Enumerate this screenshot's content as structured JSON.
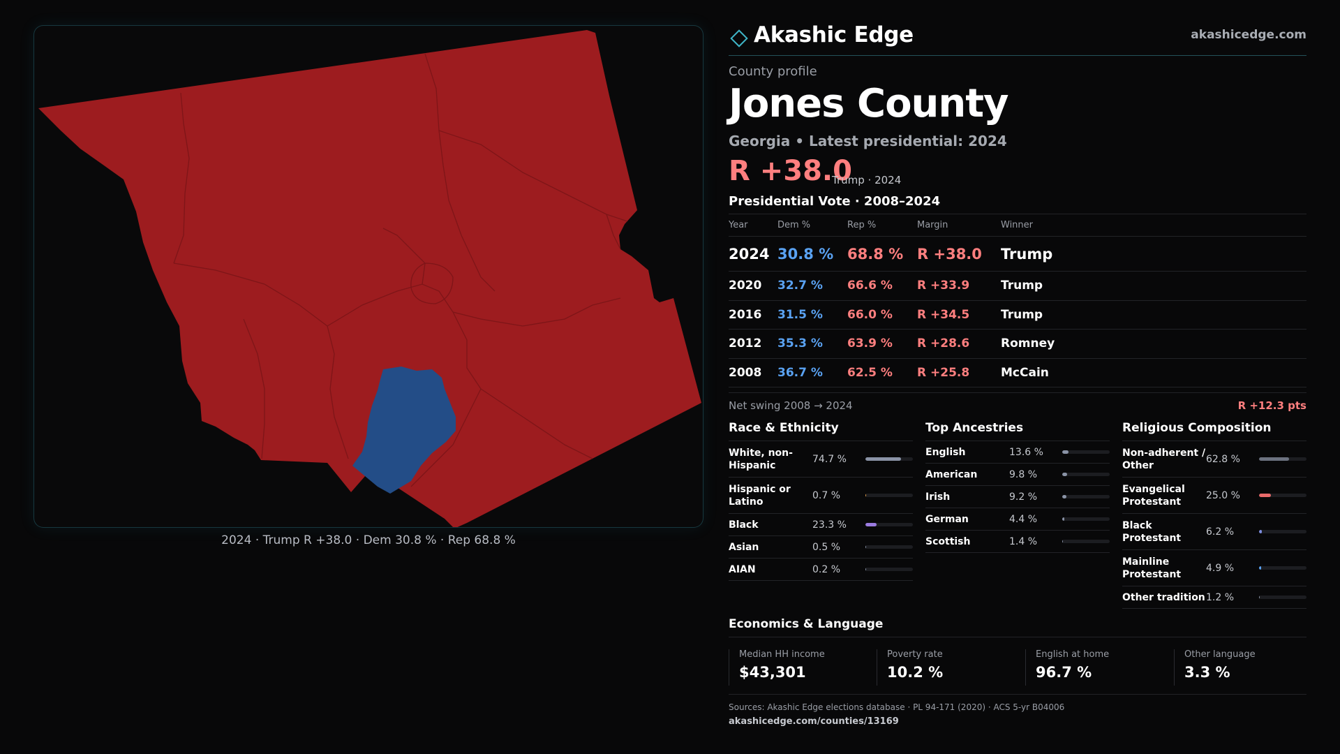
{
  "brand": {
    "name": "Akashic Edge",
    "url": "akashicedge.com"
  },
  "profile": {
    "kicker": "County profile",
    "county_name": "Jones County",
    "subtitle": "Georgia • Latest presidential: 2024",
    "margin_big": "R +38.0",
    "margin_note": "Trump · 2024"
  },
  "map": {
    "caption": "2024 · Trump R +38.0 · Dem 30.8 % · Rep 68.8 %",
    "colors": {
      "rep": "#9d1c1f",
      "dem": "#234d87",
      "borders": "#7e1518"
    }
  },
  "vote": {
    "title": "Presidential Vote · 2008–2024",
    "headers": {
      "year": "Year",
      "dem": "Dem %",
      "rep": "Rep %",
      "margin": "Margin",
      "winner": "Winner"
    },
    "rows": [
      {
        "year": "2024",
        "dem": "30.8 %",
        "rep": "68.8 %",
        "margin": "R +38.0",
        "winner": "Trump"
      },
      {
        "year": "2020",
        "dem": "32.7 %",
        "rep": "66.6 %",
        "margin": "R +33.9",
        "winner": "Trump"
      },
      {
        "year": "2016",
        "dem": "31.5 %",
        "rep": "66.0 %",
        "margin": "R +34.5",
        "winner": "Trump"
      },
      {
        "year": "2012",
        "dem": "35.3 %",
        "rep": "63.9 %",
        "margin": "R +28.6",
        "winner": "Romney"
      },
      {
        "year": "2008",
        "dem": "36.7 %",
        "rep": "62.5 %",
        "margin": "R +25.8",
        "winner": "McCain"
      }
    ],
    "swing_label": "Net swing 2008 → 2024",
    "swing_value": "R +12.3 pts"
  },
  "race": {
    "title": "Race & Ethnicity",
    "items": [
      {
        "name": "White, non-Hispanic",
        "pct": "74.7 %",
        "value": 74.7,
        "color": "#8a93a6"
      },
      {
        "name": "Hispanic or Latino",
        "pct": "0.7 %",
        "value": 0.7,
        "color": "#e8a04a"
      },
      {
        "name": "Black",
        "pct": "23.3 %",
        "value": 23.3,
        "color": "#9b7be0"
      },
      {
        "name": "Asian",
        "pct": "0.5 %",
        "value": 0.5,
        "color": "#8a93a6"
      },
      {
        "name": "AIAN",
        "pct": "0.2 %",
        "value": 0.2,
        "color": "#8a93a6"
      }
    ]
  },
  "ancestry": {
    "title": "Top Ancestries",
    "items": [
      {
        "name": "English",
        "pct": "13.6 %",
        "value": 13.6,
        "color": "#8a93a6"
      },
      {
        "name": "American",
        "pct": "9.8 %",
        "value": 9.8,
        "color": "#8a93a6"
      },
      {
        "name": "Irish",
        "pct": "9.2 %",
        "value": 9.2,
        "color": "#8a93a6"
      },
      {
        "name": "German",
        "pct": "4.4 %",
        "value": 4.4,
        "color": "#8a93a6"
      },
      {
        "name": "Scottish",
        "pct": "1.4 %",
        "value": 1.4,
        "color": "#8a93a6"
      }
    ]
  },
  "religion": {
    "title": "Religious Composition",
    "items": [
      {
        "name": "Non-adherent / Other",
        "pct": "62.8 %",
        "value": 62.8,
        "color": "#6c7280"
      },
      {
        "name": "Evangelical Protestant",
        "pct": "25.0 %",
        "value": 25.0,
        "color": "#e86a6a"
      },
      {
        "name": "Black Protestant",
        "pct": "6.2 %",
        "value": 6.2,
        "color": "#7d8ee0"
      },
      {
        "name": "Mainline Protestant",
        "pct": "4.9 %",
        "value": 4.9,
        "color": "#5aa2f2"
      },
      {
        "name": "Other tradition",
        "pct": "1.2 %",
        "value": 1.2,
        "color": "#8a93a6"
      }
    ]
  },
  "economics": {
    "title": "Economics & Language",
    "items": [
      {
        "label": "Median HH income",
        "value": "$43,301"
      },
      {
        "label": "Poverty rate",
        "value": "10.2 %"
      },
      {
        "label": "English at home",
        "value": "96.7 %"
      },
      {
        "label": "Other language",
        "value": "3.3 %"
      }
    ]
  },
  "footer": {
    "sources": "Sources: Akashic Edge elections database · PL 94-171 (2020) · ACS 5-yr B04006",
    "url": "akashicedge.com/counties/13169"
  }
}
